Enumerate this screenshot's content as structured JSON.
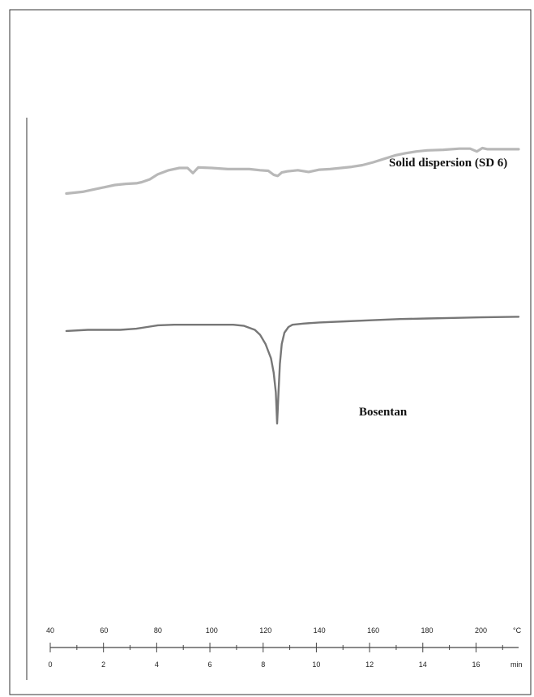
{
  "chart_data": {
    "type": "line",
    "title": "",
    "xlabel": "",
    "ylabel": "",
    "grid": false,
    "axes": {
      "temperature": {
        "unit": "°C",
        "ticks": [
          "40",
          "60",
          "80",
          "100",
          "120",
          "140",
          "160",
          "180",
          "200"
        ],
        "range": [
          40,
          214
        ]
      },
      "time": {
        "unit": "min",
        "ticks": [
          "0",
          "2",
          "4",
          "6",
          "8",
          "10",
          "12",
          "14",
          "16"
        ],
        "range": [
          0,
          17.6
        ]
      }
    },
    "series": [
      {
        "name": "Solid dispersion (SD 6)",
        "color": "#b8b8b8",
        "x": [
          46,
          52,
          58,
          64,
          68,
          72,
          74,
          77,
          80,
          84,
          88,
          91,
          93,
          95,
          100,
          106,
          110,
          114,
          118,
          121,
          123,
          124.5,
          126,
          128,
          132,
          136,
          140,
          144,
          148,
          152,
          156,
          160,
          164,
          168,
          172,
          176,
          180,
          186,
          192,
          196,
          198.5,
          200.5,
          202.5,
          206,
          214
        ],
        "y": [
          0.745,
          0.748,
          0.754,
          0.76,
          0.762,
          0.763,
          0.765,
          0.77,
          0.779,
          0.786,
          0.79,
          0.79,
          0.781,
          0.791,
          0.79,
          0.788,
          0.788,
          0.788,
          0.786,
          0.785,
          0.778,
          0.776,
          0.782,
          0.784,
          0.786,
          0.783,
          0.787,
          0.788,
          0.79,
          0.792,
          0.795,
          0.8,
          0.806,
          0.812,
          0.816,
          0.819,
          0.821,
          0.822,
          0.824,
          0.824,
          0.819,
          0.825,
          0.823,
          0.823,
          0.823
        ]
      },
      {
        "name": "Bosentan",
        "color": "#777777",
        "x": [
          46,
          54,
          60,
          66,
          72,
          76,
          80,
          86,
          94,
          102,
          108,
          112,
          116,
          118,
          120,
          122,
          123,
          123.8,
          124.3,
          124.8,
          125.3,
          126,
          127,
          128.5,
          130,
          134,
          140,
          150,
          160,
          170,
          180,
          190,
          200,
          214
        ],
        "y": [
          0.503,
          0.505,
          0.505,
          0.505,
          0.507,
          0.51,
          0.513,
          0.514,
          0.514,
          0.514,
          0.514,
          0.512,
          0.505,
          0.496,
          0.48,
          0.455,
          0.43,
          0.395,
          0.34,
          0.395,
          0.445,
          0.48,
          0.5,
          0.51,
          0.514,
          0.516,
          0.518,
          0.52,
          0.522,
          0.524,
          0.525,
          0.526,
          0.527,
          0.528
        ]
      }
    ]
  }
}
